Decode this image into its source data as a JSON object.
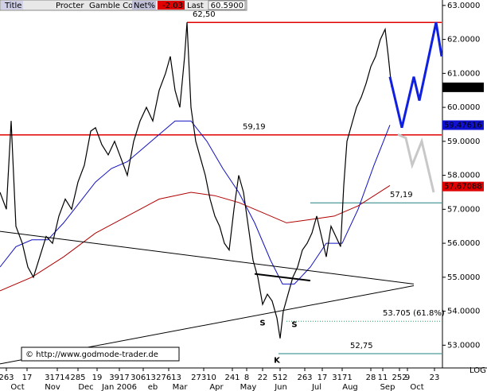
{
  "chart_data": {
    "type": "line",
    "header": {
      "title_label": "Title",
      "name": "Procter",
      "name2": "Gamble Co",
      "net_label": "Net%",
      "net": -2.03,
      "last_label": "Last",
      "last": {
        "value": 60.59,
        "label": "60.5900"
      }
    },
    "copyright": "© http://www.godmode-trader.de",
    "scale_label": "LOG",
    "xlim": [
      0,
      555
    ],
    "ylim": [
      52.4,
      63.16
    ],
    "yticks": [
      {
        "value": 63,
        "label": "63.0000"
      },
      {
        "value": 62,
        "label": "62.0000"
      },
      {
        "value": 61,
        "label": "61.0000"
      },
      {
        "value": 60,
        "label": "60.0000"
      },
      {
        "value": 59,
        "label": "59.0000"
      },
      {
        "value": 58,
        "label": "58.0000"
      },
      {
        "value": 57,
        "label": "57.0000"
      },
      {
        "value": 56,
        "label": "56.0000"
      },
      {
        "value": 55,
        "label": "55.0000"
      },
      {
        "value": 54,
        "label": "54.0000"
      },
      {
        "value": 53,
        "label": "53.0000"
      }
    ],
    "xticks": [
      {
        "value": 8,
        "label": "263"
      },
      {
        "value": 34,
        "label": "17"
      },
      {
        "value": 72,
        "label": "31714"
      },
      {
        "value": 98,
        "label": "285"
      },
      {
        "value": 122,
        "label": "19"
      },
      {
        "value": 150,
        "label": "3917"
      },
      {
        "value": 180,
        "label": "30613"
      },
      {
        "value": 212,
        "label": "27613"
      },
      {
        "value": 256,
        "label": "27310"
      },
      {
        "value": 292,
        "label": "241"
      },
      {
        "value": 310,
        "label": "8"
      },
      {
        "value": 330,
        "label": "22"
      },
      {
        "value": 352,
        "label": "512"
      },
      {
        "value": 383,
        "label": "263"
      },
      {
        "value": 405,
        "label": "17"
      },
      {
        "value": 430,
        "label": "3171"
      },
      {
        "value": 466,
        "label": "28"
      },
      {
        "value": 481,
        "label": "11"
      },
      {
        "value": 502,
        "label": "252"
      },
      {
        "value": 512,
        "label": "9"
      },
      {
        "value": 546,
        "label": "23"
      }
    ],
    "xmonths": [
      {
        "value": 22,
        "label": "Oct"
      },
      {
        "value": 66,
        "label": "Nov"
      },
      {
        "value": 108,
        "label": "Dec"
      },
      {
        "value": 150,
        "label": "Jan 2006"
      },
      {
        "value": 192,
        "label": "eb"
      },
      {
        "value": 226,
        "label": "Mar"
      },
      {
        "value": 272,
        "label": "Apr"
      },
      {
        "value": 312,
        "label": "May"
      },
      {
        "value": 353,
        "label": "Jun"
      },
      {
        "value": 398,
        "label": "Jul"
      },
      {
        "value": 440,
        "label": "Aug"
      },
      {
        "value": 487,
        "label": "Sep"
      },
      {
        "value": 524,
        "label": "Oct"
      }
    ],
    "series": [
      {
        "color": "#b00000",
        "width": 1,
        "x": [
          0,
          40,
          80,
          120,
          160,
          200,
          240,
          270,
          300,
          330,
          360,
          390,
          420,
          450,
          490
        ],
        "values": [
          54.6,
          55.0,
          55.6,
          56.3,
          56.8,
          57.3,
          57.5,
          57.4,
          57.2,
          56.9,
          56.6,
          56.7,
          56.8,
          57.1,
          57.7
        ]
      },
      {
        "color": "#1010c0",
        "width": 1,
        "x": [
          0,
          20,
          40,
          60,
          80,
          100,
          120,
          140,
          160,
          180,
          200,
          220,
          240,
          260,
          280,
          300,
          320,
          340,
          355,
          370,
          390,
          410,
          430,
          450,
          470,
          490
        ],
        "values": [
          55.3,
          55.9,
          56.1,
          56.1,
          56.6,
          57.2,
          57.8,
          58.2,
          58.4,
          58.8,
          59.2,
          59.6,
          59.6,
          59.0,
          58.2,
          57.5,
          56.6,
          55.5,
          54.8,
          54.8,
          55.3,
          56.0,
          56.0,
          57.0,
          58.3,
          59.48
        ]
      },
      {
        "color": "#000000",
        "width": 1.2,
        "x": [
          0,
          8,
          14,
          20,
          28,
          35,
          42,
          50,
          58,
          66,
          74,
          82,
          90,
          98,
          106,
          114,
          120,
          128,
          136,
          144,
          152,
          160,
          168,
          176,
          184,
          192,
          200,
          208,
          214,
          220,
          226,
          232,
          235,
          240,
          246,
          252,
          258,
          264,
          270,
          276,
          282,
          288,
          294,
          300,
          306,
          312,
          318,
          324,
          330,
          336,
          342,
          348,
          352,
          356,
          362,
          368,
          374,
          380,
          386,
          392,
          398,
          404,
          410,
          416,
          422,
          428,
          432,
          436,
          442,
          448,
          454,
          460,
          466,
          472,
          478,
          484,
          488,
          492
        ],
        "values": [
          57.5,
          57.0,
          59.6,
          56.5,
          56.0,
          55.3,
          55.0,
          55.6,
          56.2,
          56.0,
          56.8,
          57.3,
          57.0,
          57.8,
          58.3,
          59.3,
          59.4,
          58.9,
          58.6,
          59.0,
          58.5,
          58.0,
          59.0,
          59.6,
          60.0,
          59.6,
          60.5,
          61.0,
          61.5,
          60.5,
          60.0,
          61.5,
          62.5,
          60.0,
          59.0,
          58.5,
          58.0,
          57.3,
          56.8,
          56.5,
          56.0,
          55.8,
          57.0,
          58.0,
          57.5,
          56.5,
          55.5,
          55.0,
          54.2,
          54.5,
          54.3,
          53.8,
          53.2,
          54.0,
          54.5,
          55.0,
          55.3,
          55.8,
          56.0,
          56.3,
          56.8,
          56.2,
          55.6,
          56.5,
          56.2,
          55.9,
          57.7,
          59.0,
          59.5,
          60.0,
          60.3,
          60.7,
          61.2,
          61.5,
          62.0,
          62.3,
          61.5,
          60.59
        ]
      },
      {
        "color": "#1020e0",
        "width": 3,
        "x": [
          490,
          505,
          520,
          527,
          548,
          555
        ],
        "values": [
          60.9,
          59.4,
          60.9,
          60.2,
          62.5,
          61.5
        ]
      },
      {
        "color": "#c8c8c8",
        "width": 3,
        "x": [
          500,
          510,
          518,
          530,
          545
        ],
        "values": [
          59.2,
          59.1,
          58.3,
          59.0,
          57.5
        ]
      },
      {
        "color": "#000000",
        "width": 1,
        "x": [
          0,
          520
        ],
        "values": [
          56.35,
          54.8
        ]
      },
      {
        "color": "#000000",
        "width": 1,
        "x": [
          0,
          520
        ],
        "values": [
          52.45,
          54.75
        ]
      },
      {
        "color": "#000000",
        "width": 2,
        "x": [
          320,
          390
        ],
        "values": [
          55.1,
          54.9
        ]
      }
    ],
    "levels": [
      {
        "value": 59.19,
        "label": "59,19",
        "color": "#e00000",
        "x": [
          0,
          555
        ],
        "label_x": 305
      },
      {
        "value": 62.5,
        "label": "62,50",
        "color": "#e00000",
        "x": [
          235,
          555
        ],
        "label_x": 242
      },
      {
        "value": 57.19,
        "label": "57,19",
        "color": "#208080",
        "x": [
          390,
          555
        ],
        "label_x": 490
      },
      {
        "value": 53.705,
        "label": "53.705 (61.8%)",
        "color": "#20a060",
        "x": [
          360,
          555
        ],
        "label_x": 481,
        "dotted": true
      },
      {
        "value": 52.75,
        "label": "52,75",
        "color": "#208080",
        "x": [
          350,
          555
        ],
        "label_x": 440
      }
    ],
    "tags": [
      {
        "value": 60.59,
        "label": "60.5900",
        "color": "#000000"
      },
      {
        "value": 59.47616,
        "label": "59.47616",
        "color": "#1010d0"
      },
      {
        "value": 57.67088,
        "label": "57.67088",
        "color": "#e00000"
      }
    ],
    "letters": [
      {
        "x": 330,
        "y": 53.65,
        "label": "S"
      },
      {
        "x": 370,
        "y": 53.6,
        "label": "S"
      },
      {
        "x": 348,
        "y": 52.55,
        "label": "K"
      }
    ]
  }
}
